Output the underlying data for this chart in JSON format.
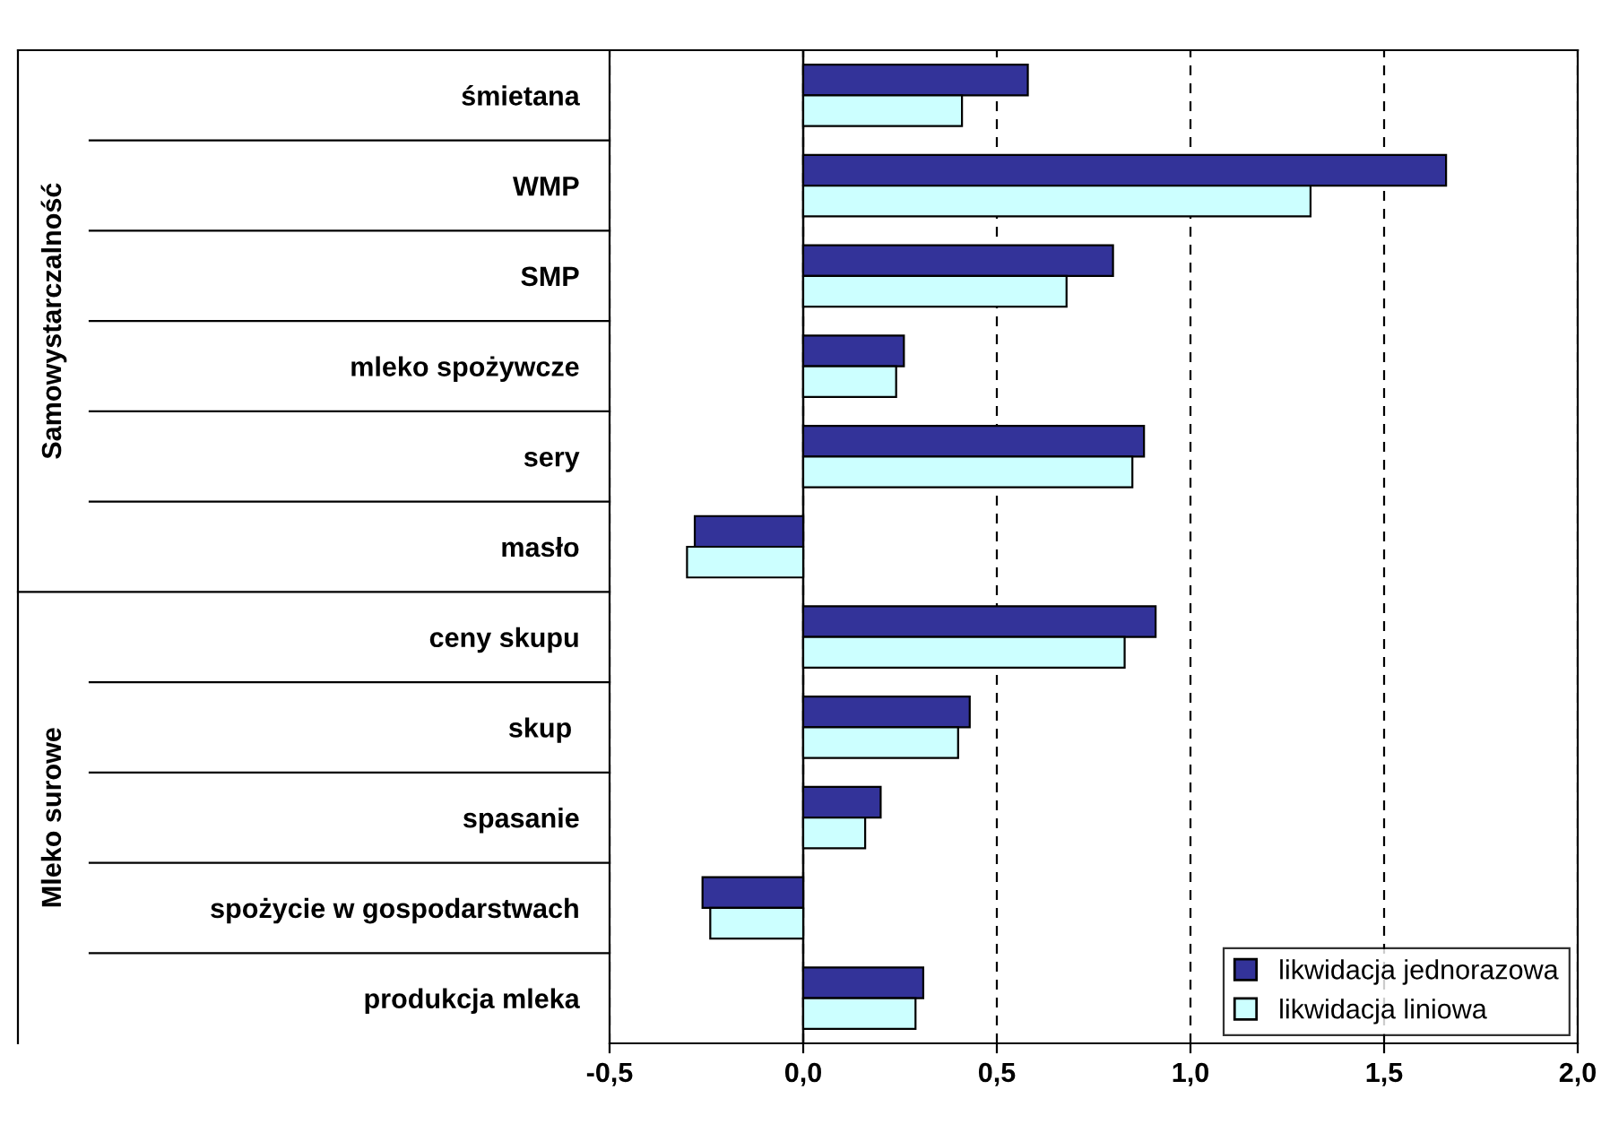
{
  "chart_data": {
    "type": "bar",
    "orientation": "horizontal",
    "categories": [
      "śmietana",
      "WMP",
      "SMP",
      "mleko spożywcze",
      "sery",
      "masło",
      "ceny skupu",
      "skup ",
      "spasanie",
      "spożycie w gospodarstwach",
      "produkcja mleka"
    ],
    "series": [
      {
        "name": "likwidacja jednorazowa",
        "color": "#333399",
        "values": [
          0.58,
          1.66,
          0.8,
          0.26,
          0.88,
          -0.28,
          0.91,
          0.43,
          0.2,
          -0.26,
          0.31
        ]
      },
      {
        "name": "likwidacja liniowa",
        "color": "#ccffff",
        "values": [
          0.41,
          1.31,
          0.68,
          0.24,
          0.85,
          -0.3,
          0.83,
          0.4,
          0.16,
          -0.24,
          0.29
        ]
      }
    ],
    "xlim": [
      -0.5,
      2.0
    ],
    "xticks": [
      {
        "value": -0.5,
        "label": "-0,5"
      },
      {
        "value": 0,
        "label": "0,0"
      },
      {
        "value": 0.5,
        "label": "0,5"
      },
      {
        "value": 1.0,
        "label": "1,0"
      },
      {
        "value": 1.5,
        "label": "1,5"
      },
      {
        "value": 2.0,
        "label": "2,0"
      }
    ],
    "grid": "x",
    "legend": "bottom right",
    "annotations": [
      "Samowystarczalność",
      "Mleko surowe"
    ]
  }
}
